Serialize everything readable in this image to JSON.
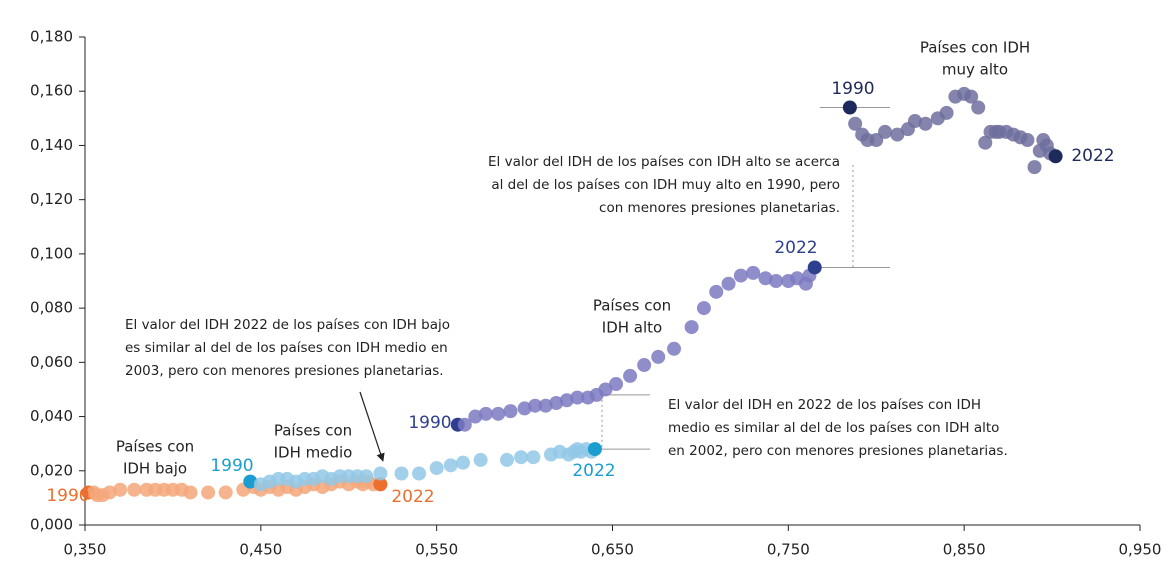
{
  "chart_data": {
    "type": "scatter",
    "xlim": [
      0.35,
      0.95
    ],
    "ylim": [
      0,
      0.18
    ],
    "xticks": [
      {
        "value": 0.35,
        "label": "0,350"
      },
      {
        "value": 0.45,
        "label": "0,450"
      },
      {
        "value": 0.55,
        "label": "0,550"
      },
      {
        "value": 0.65,
        "label": "0,650"
      },
      {
        "value": 0.75,
        "label": "0,750"
      },
      {
        "value": 0.85,
        "label": "0,850"
      },
      {
        "value": 0.95,
        "label": "0,950"
      }
    ],
    "yticks": [
      {
        "value": 0,
        "label": "0,000"
      },
      {
        "value": 0.02,
        "label": "0,020"
      },
      {
        "value": 0.04,
        "label": "0,040"
      },
      {
        "value": 0.06,
        "label": "0,060"
      },
      {
        "value": 0.08,
        "label": "0,080"
      },
      {
        "value": 0.1,
        "label": "0,100"
      },
      {
        "value": 0.12,
        "label": "0,120"
      },
      {
        "value": 0.14,
        "label": "0,140"
      },
      {
        "value": 0.16,
        "label": "0,160"
      },
      {
        "value": 0.18,
        "label": "0,180"
      }
    ],
    "series": [
      {
        "name": [
          "Países con",
          "IDH bajo"
        ],
        "color": "#f4a77a",
        "end_color": "#ec6f2d",
        "year_labels": [
          "1990",
          "2022"
        ],
        "x": [
          0.352,
          0.355,
          0.357,
          0.36,
          0.364,
          0.37,
          0.378,
          0.385,
          0.39,
          0.395,
          0.4,
          0.405,
          0.41,
          0.42,
          0.43,
          0.44,
          0.446,
          0.45,
          0.455,
          0.46,
          0.465,
          0.47,
          0.475,
          0.48,
          0.485,
          0.49,
          0.495,
          0.5,
          0.505,
          0.508,
          0.511,
          0.514,
          0.518
        ],
        "values": [
          0.012,
          0.012,
          0.011,
          0.011,
          0.012,
          0.013,
          0.013,
          0.013,
          0.013,
          0.013,
          0.013,
          0.013,
          0.012,
          0.012,
          0.012,
          0.013,
          0.014,
          0.013,
          0.014,
          0.013,
          0.014,
          0.013,
          0.014,
          0.015,
          0.014,
          0.015,
          0.016,
          0.015,
          0.016,
          0.015,
          0.016,
          0.015,
          0.015
        ]
      },
      {
        "name": [
          "Países con",
          "IDH medio"
        ],
        "color": "#92c8e6",
        "end_color": "#1b9ecf",
        "year_labels": [
          "1990",
          "2022"
        ],
        "x": [
          0.444,
          0.45,
          0.455,
          0.46,
          0.465,
          0.47,
          0.475,
          0.48,
          0.485,
          0.49,
          0.495,
          0.5,
          0.505,
          0.51,
          0.518,
          0.53,
          0.54,
          0.55,
          0.558,
          0.565,
          0.575,
          0.59,
          0.598,
          0.605,
          0.615,
          0.62,
          0.625,
          0.628,
          0.63,
          0.632,
          0.635,
          0.638,
          0.64
        ],
        "values": [
          0.016,
          0.015,
          0.016,
          0.017,
          0.017,
          0.016,
          0.017,
          0.017,
          0.018,
          0.017,
          0.018,
          0.018,
          0.018,
          0.018,
          0.019,
          0.019,
          0.019,
          0.021,
          0.022,
          0.023,
          0.024,
          0.024,
          0.025,
          0.025,
          0.026,
          0.027,
          0.026,
          0.027,
          0.028,
          0.027,
          0.028,
          0.027,
          0.028
        ]
      },
      {
        "name": [
          "Países con",
          "IDH alto"
        ],
        "color": "#7d79c2",
        "end_color": "#2e3f8f",
        "year_labels": [
          "1990",
          "2022"
        ],
        "x": [
          0.562,
          0.566,
          0.572,
          0.578,
          0.585,
          0.592,
          0.6,
          0.606,
          0.612,
          0.618,
          0.624,
          0.63,
          0.636,
          0.641,
          0.646,
          0.652,
          0.66,
          0.668,
          0.676,
          0.685,
          0.695,
          0.702,
          0.709,
          0.716,
          0.723,
          0.73,
          0.737,
          0.743,
          0.75,
          0.755,
          0.76,
          0.762,
          0.765
        ],
        "values": [
          0.037,
          0.037,
          0.04,
          0.041,
          0.041,
          0.042,
          0.043,
          0.044,
          0.044,
          0.045,
          0.046,
          0.047,
          0.047,
          0.048,
          0.05,
          0.052,
          0.055,
          0.059,
          0.062,
          0.065,
          0.073,
          0.08,
          0.086,
          0.089,
          0.092,
          0.093,
          0.091,
          0.09,
          0.09,
          0.091,
          0.089,
          0.092,
          0.095
        ]
      },
      {
        "name": [
          "Países con IDH",
          "muy alto"
        ],
        "color": "#6f6e9e",
        "end_color": "#1f2a5c",
        "year_labels": [
          "1990",
          "2022"
        ],
        "x": [
          0.785,
          0.788,
          0.792,
          0.795,
          0.8,
          0.805,
          0.812,
          0.818,
          0.822,
          0.828,
          0.835,
          0.84,
          0.845,
          0.85,
          0.854,
          0.858,
          0.862,
          0.865,
          0.868,
          0.87,
          0.874,
          0.878,
          0.882,
          0.886,
          0.89,
          0.893,
          0.895,
          0.897,
          0.899,
          0.902
        ],
        "values": [
          0.154,
          0.148,
          0.144,
          0.142,
          0.142,
          0.145,
          0.144,
          0.146,
          0.149,
          0.148,
          0.15,
          0.152,
          0.158,
          0.159,
          0.158,
          0.154,
          0.141,
          0.145,
          0.145,
          0.145,
          0.145,
          0.144,
          0.143,
          0.142,
          0.132,
          0.138,
          0.142,
          0.14,
          0.137,
          0.136
        ]
      }
    ],
    "annotations": [
      [
        "El valor del IDH de los países con IDH alto se acerca",
        "al del de los países con IDH muy alto en 1990, pero",
        "con menores presiones planetarias."
      ],
      [
        "El valor del IDH 2022 de los países con IDH bajo",
        "es similar al del de los países con IDH medio en",
        "2003, pero con menores presiones planetarias."
      ],
      [
        "El valor del IDH en 2022 de los países con IDH",
        "medio es similar al del de los países con IDH alto",
        "en 2002, pero con menores presiones planetarias."
      ]
    ]
  }
}
